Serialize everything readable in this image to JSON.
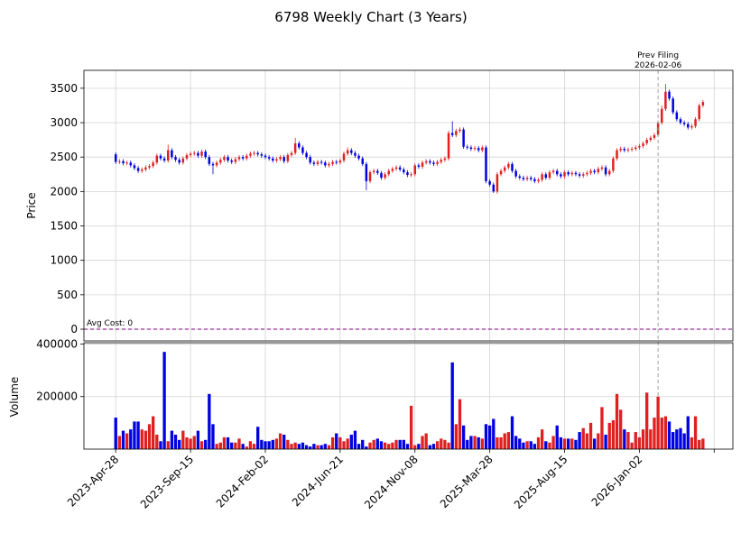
{
  "chart_data": [
    {
      "type": "candlestick",
      "title": "6798 Weekly Chart (3 Years)",
      "ylabel": "Price",
      "up_color": "#e02020",
      "down_color": "#0000e0",
      "grid": true,
      "ylim": [
        -170,
        3760
      ],
      "yticks": [
        0,
        500,
        1000,
        1500,
        2000,
        2500,
        3000,
        3500
      ],
      "hline": {
        "y": 0,
        "label": "Avg Cost: 0",
        "color": "#800080"
      },
      "vline": {
        "x": 145,
        "label": [
          "Prev Filing",
          "2026-02-06"
        ],
        "color": "#a0a0a0"
      },
      "open": [
        2540,
        2430,
        2440,
        2410,
        2420,
        2380,
        2340,
        2300,
        2320,
        2350,
        2370,
        2420,
        2520,
        2480,
        2450,
        2600,
        2500,
        2460,
        2420,
        2480,
        2530,
        2550,
        2560,
        2520,
        2580,
        2500,
        2400,
        2380,
        2420,
        2460,
        2500,
        2450,
        2430,
        2470,
        2500,
        2480,
        2520,
        2550,
        2560,
        2540,
        2520,
        2500,
        2480,
        2450,
        2470,
        2500,
        2440,
        2530,
        2560,
        2700,
        2640,
        2560,
        2500,
        2420,
        2400,
        2430,
        2420,
        2380,
        2400,
        2430,
        2420,
        2450,
        2550,
        2600,
        2560,
        2520,
        2480,
        2400,
        2150,
        2280,
        2300,
        2270,
        2200,
        2250,
        2300,
        2330,
        2350,
        2320,
        2280,
        2240,
        2250,
        2380,
        2360,
        2420,
        2440,
        2420,
        2400,
        2430,
        2460,
        2480,
        2850,
        2820,
        2880,
        2900,
        2650,
        2640,
        2620,
        2630,
        2600,
        2640,
        2150,
        2100,
        2000,
        2250,
        2300,
        2350,
        2400,
        2300,
        2220,
        2200,
        2180,
        2200,
        2180,
        2150,
        2170,
        2250,
        2200,
        2280,
        2300,
        2250,
        2220,
        2280,
        2250,
        2270,
        2250,
        2230,
        2250,
        2270,
        2300,
        2280,
        2330,
        2350,
        2250,
        2300,
        2480,
        2600,
        2620,
        2600,
        2610,
        2620,
        2640,
        2660,
        2700,
        2750,
        2780,
        2820,
        3000,
        3200,
        3450,
        3350,
        3150,
        3050,
        3000,
        2980,
        2930,
        2950,
        3050,
        3250
      ],
      "high": [
        2570,
        2470,
        2470,
        2450,
        2450,
        2410,
        2370,
        2350,
        2380,
        2400,
        2450,
        2550,
        2550,
        2510,
        2680,
        2630,
        2530,
        2490,
        2510,
        2560,
        2580,
        2590,
        2590,
        2610,
        2610,
        2530,
        2430,
        2450,
        2490,
        2530,
        2530,
        2480,
        2500,
        2530,
        2530,
        2550,
        2580,
        2590,
        2590,
        2570,
        2550,
        2530,
        2510,
        2500,
        2530,
        2530,
        2560,
        2590,
        2780,
        2730,
        2670,
        2590,
        2530,
        2450,
        2460,
        2460,
        2450,
        2430,
        2460,
        2460,
        2480,
        2580,
        2640,
        2630,
        2590,
        2550,
        2510,
        2430,
        2310,
        2330,
        2330,
        2300,
        2280,
        2330,
        2360,
        2380,
        2380,
        2350,
        2310,
        2280,
        2410,
        2410,
        2450,
        2470,
        2470,
        2450,
        2460,
        2490,
        2510,
        2880,
        3020,
        2910,
        2930,
        2930,
        2680,
        2670,
        2660,
        2660,
        2670,
        2670,
        2180,
        2130,
        2280,
        2330,
        2380,
        2430,
        2430,
        2330,
        2250,
        2230,
        2230,
        2230,
        2210,
        2200,
        2280,
        2280,
        2310,
        2330,
        2330,
        2280,
        2310,
        2310,
        2300,
        2300,
        2280,
        2280,
        2300,
        2330,
        2330,
        2360,
        2380,
        2380,
        2330,
        2510,
        2630,
        2650,
        2650,
        2640,
        2650,
        2670,
        2690,
        2730,
        2780,
        2810,
        2850,
        3030,
        3250,
        3560,
        3480,
        3380,
        3180,
        3080,
        3030,
        3010,
        2980,
        3080,
        3280,
        3330
      ],
      "low": [
        2400,
        2400,
        2380,
        2380,
        2350,
        2310,
        2270,
        2270,
        2290,
        2320,
        2340,
        2390,
        2450,
        2420,
        2420,
        2470,
        2430,
        2390,
        2390,
        2450,
        2500,
        2520,
        2490,
        2490,
        2470,
        2370,
        2250,
        2350,
        2390,
        2430,
        2420,
        2400,
        2400,
        2440,
        2450,
        2450,
        2490,
        2520,
        2510,
        2490,
        2470,
        2450,
        2420,
        2420,
        2440,
        2410,
        2410,
        2500,
        2530,
        2610,
        2530,
        2470,
        2390,
        2370,
        2370,
        2390,
        2350,
        2350,
        2370,
        2390,
        2390,
        2420,
        2520,
        2530,
        2490,
        2450,
        2370,
        2020,
        2120,
        2250,
        2240,
        2170,
        2170,
        2220,
        2270,
        2300,
        2290,
        2250,
        2210,
        2210,
        2220,
        2330,
        2330,
        2390,
        2390,
        2370,
        2370,
        2400,
        2430,
        2450,
        2790,
        2790,
        2850,
        2620,
        2610,
        2590,
        2590,
        2570,
        2570,
        2120,
        2070,
        1980,
        1970,
        2220,
        2270,
        2320,
        2270,
        2190,
        2170,
        2150,
        2150,
        2150,
        2120,
        2120,
        2140,
        2170,
        2170,
        2250,
        2220,
        2190,
        2190,
        2220,
        2220,
        2220,
        2200,
        2200,
        2220,
        2240,
        2250,
        2250,
        2300,
        2220,
        2220,
        2270,
        2450,
        2570,
        2570,
        2570,
        2580,
        2590,
        2610,
        2630,
        2670,
        2720,
        2750,
        2790,
        2970,
        3170,
        3320,
        3120,
        3020,
        2970,
        2950,
        2900,
        2900,
        2920,
        3020,
        3220
      ],
      "close": [
        2430,
        2440,
        2410,
        2420,
        2380,
        2340,
        2300,
        2320,
        2350,
        2370,
        2420,
        2520,
        2480,
        2450,
        2600,
        2500,
        2460,
        2420,
        2480,
        2530,
        2550,
        2560,
        2520,
        2580,
        2500,
        2400,
        2380,
        2420,
        2460,
        2500,
        2450,
        2430,
        2470,
        2500,
        2480,
        2520,
        2550,
        2560,
        2540,
        2520,
        2500,
        2480,
        2450,
        2470,
        2500,
        2440,
        2530,
        2560,
        2700,
        2640,
        2560,
        2500,
        2420,
        2400,
        2430,
        2420,
        2380,
        2400,
        2430,
        2420,
        2450,
        2550,
        2600,
        2560,
        2520,
        2480,
        2400,
        2150,
        2280,
        2300,
        2270,
        2200,
        2250,
        2300,
        2330,
        2350,
        2320,
        2280,
        2240,
        2250,
        2380,
        2360,
        2420,
        2440,
        2420,
        2400,
        2430,
        2460,
        2480,
        2850,
        2820,
        2880,
        2900,
        2650,
        2640,
        2620,
        2630,
        2600,
        2640,
        2150,
        2100,
        2000,
        2250,
        2300,
        2350,
        2400,
        2300,
        2220,
        2200,
        2180,
        2200,
        2180,
        2150,
        2170,
        2250,
        2200,
        2280,
        2300,
        2250,
        2220,
        2280,
        2250,
        2270,
        2250,
        2230,
        2250,
        2270,
        2300,
        2280,
        2330,
        2350,
        2250,
        2300,
        2480,
        2600,
        2620,
        2600,
        2610,
        2620,
        2640,
        2660,
        2700,
        2750,
        2780,
        2820,
        3000,
        3200,
        3450,
        3350,
        3150,
        3050,
        3000,
        2980,
        2930,
        2950,
        3050,
        3250,
        3300
      ]
    },
    {
      "type": "bar",
      "ylabel": "Volume",
      "ylim": [
        0,
        405000
      ],
      "yticks": [
        200000,
        400000
      ],
      "grid": true,
      "xlim": [
        -8.5,
        165
      ],
      "xticks": [
        {
          "value": 0,
          "label": "2023-Apr-28"
        },
        {
          "value": 20,
          "label": "2023-Sep-15"
        },
        {
          "value": 40,
          "label": "2024-Feb-02"
        },
        {
          "value": 60,
          "label": "2024-Jun-21"
        },
        {
          "value": 80,
          "label": "2024-Nov-08"
        },
        {
          "value": 100,
          "label": "2025-Mar-28"
        },
        {
          "value": 120,
          "label": "2025-Aug-15"
        },
        {
          "value": 140,
          "label": "2026-Jan-02"
        },
        {
          "value": 160,
          "label": null
        }
      ],
      "values": [
        120000,
        50000,
        70000,
        60000,
        75000,
        105000,
        105000,
        75000,
        70000,
        95000,
        125000,
        55000,
        30000,
        370000,
        30000,
        70000,
        55000,
        35000,
        70000,
        45000,
        40000,
        50000,
        70000,
        30000,
        35000,
        210000,
        95000,
        20000,
        25000,
        45000,
        45000,
        25000,
        25000,
        40000,
        20000,
        10000,
        30000,
        20000,
        85000,
        35000,
        30000,
        30000,
        35000,
        40000,
        60000,
        55000,
        35000,
        20000,
        25000,
        20000,
        25000,
        15000,
        10000,
        20000,
        15000,
        15000,
        20000,
        15000,
        45000,
        60000,
        45000,
        30000,
        40000,
        55000,
        70000,
        20000,
        35000,
        10000,
        25000,
        35000,
        40000,
        30000,
        25000,
        20000,
        25000,
        35000,
        35000,
        35000,
        20000,
        165000,
        15000,
        20000,
        50000,
        60000,
        15000,
        20000,
        30000,
        40000,
        35000,
        25000,
        330000,
        95000,
        190000,
        90000,
        35000,
        50000,
        50000,
        45000,
        40000,
        95000,
        90000,
        115000,
        45000,
        45000,
        60000,
        65000,
        125000,
        50000,
        40000,
        25000,
        30000,
        30000,
        20000,
        45000,
        75000,
        30000,
        25000,
        50000,
        90000,
        45000,
        40000,
        40000,
        40000,
        35000,
        65000,
        80000,
        60000,
        100000,
        40000,
        60000,
        160000,
        55000,
        100000,
        110000,
        210000,
        150000,
        75000,
        65000,
        25000,
        65000,
        45000,
        75000,
        215000,
        75000,
        120000,
        200000,
        120000,
        125000,
        105000,
        65000,
        75000,
        80000,
        60000,
        125000,
        45000,
        125000,
        35000,
        40000
      ]
    }
  ]
}
